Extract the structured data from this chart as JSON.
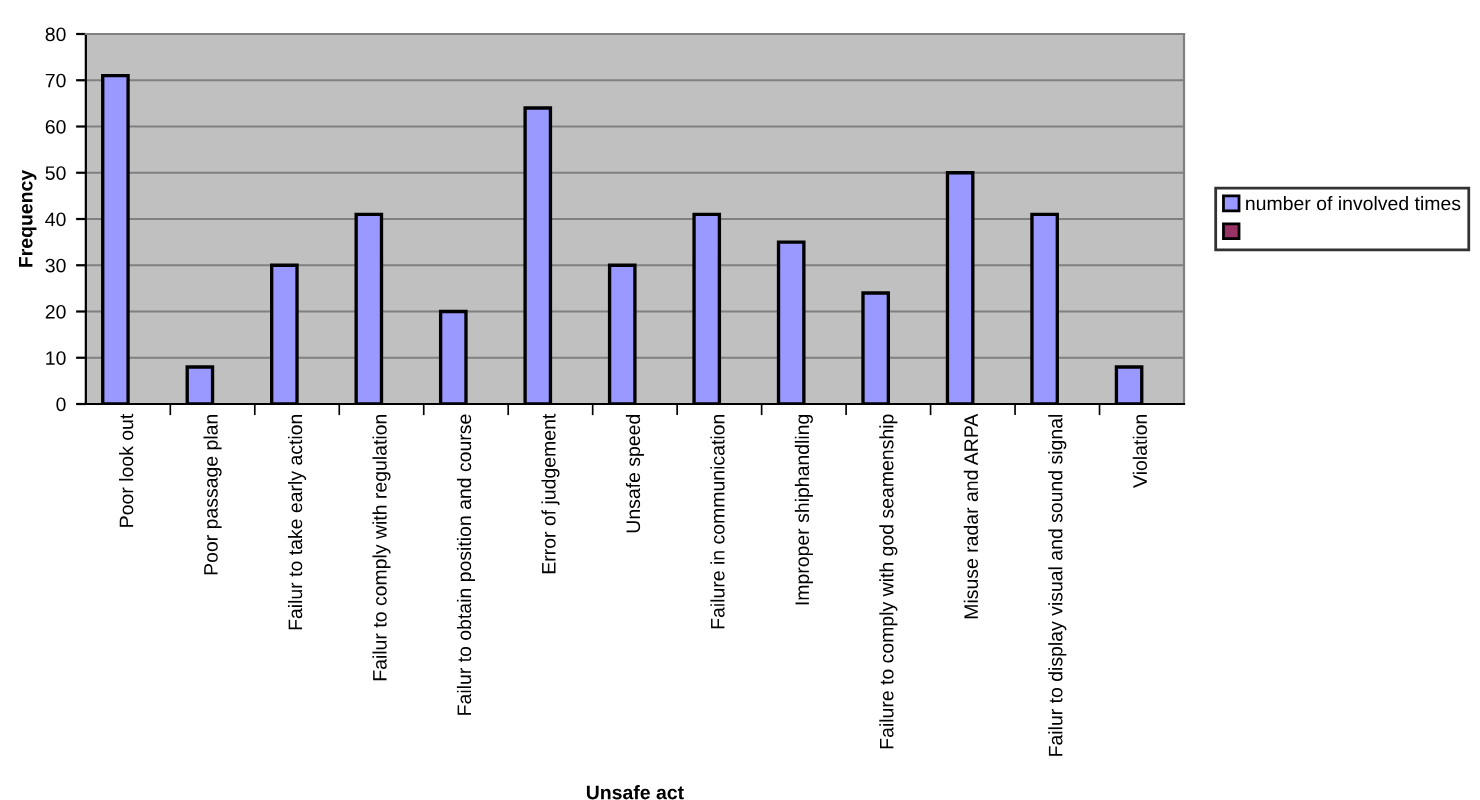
{
  "chart_data": {
    "type": "bar",
    "xlabel": "Unsafe act",
    "ylabel": "Frequency",
    "categories": [
      "Poor look out",
      "Poor passage plan",
      "Failur to take early action",
      "Failur to comply with regulation",
      "Failur to obtain position and course",
      "Error of judgement",
      "Unsafe speed",
      "Failure in communication",
      "Improper shiphandling",
      "Failure to comply with god seamenship",
      "Misuse radar and ARPA",
      "Failur to display visual and sound signal",
      "Violation"
    ],
    "series": [
      {
        "name": "number of involved times",
        "color": "#9999ff",
        "values": [
          71,
          8,
          30,
          41,
          20,
          64,
          30,
          41,
          35,
          24,
          50,
          41,
          8
        ]
      },
      {
        "color": "#993366",
        "values": [
          null,
          null,
          null,
          null,
          null,
          null,
          null,
          null,
          null,
          null,
          null,
          null,
          null
        ]
      }
    ],
    "ylim": [
      0,
      80
    ],
    "yticks": [
      0,
      10,
      20,
      30,
      40,
      50,
      60,
      70,
      80
    ],
    "grid": "y",
    "legend": "right"
  }
}
